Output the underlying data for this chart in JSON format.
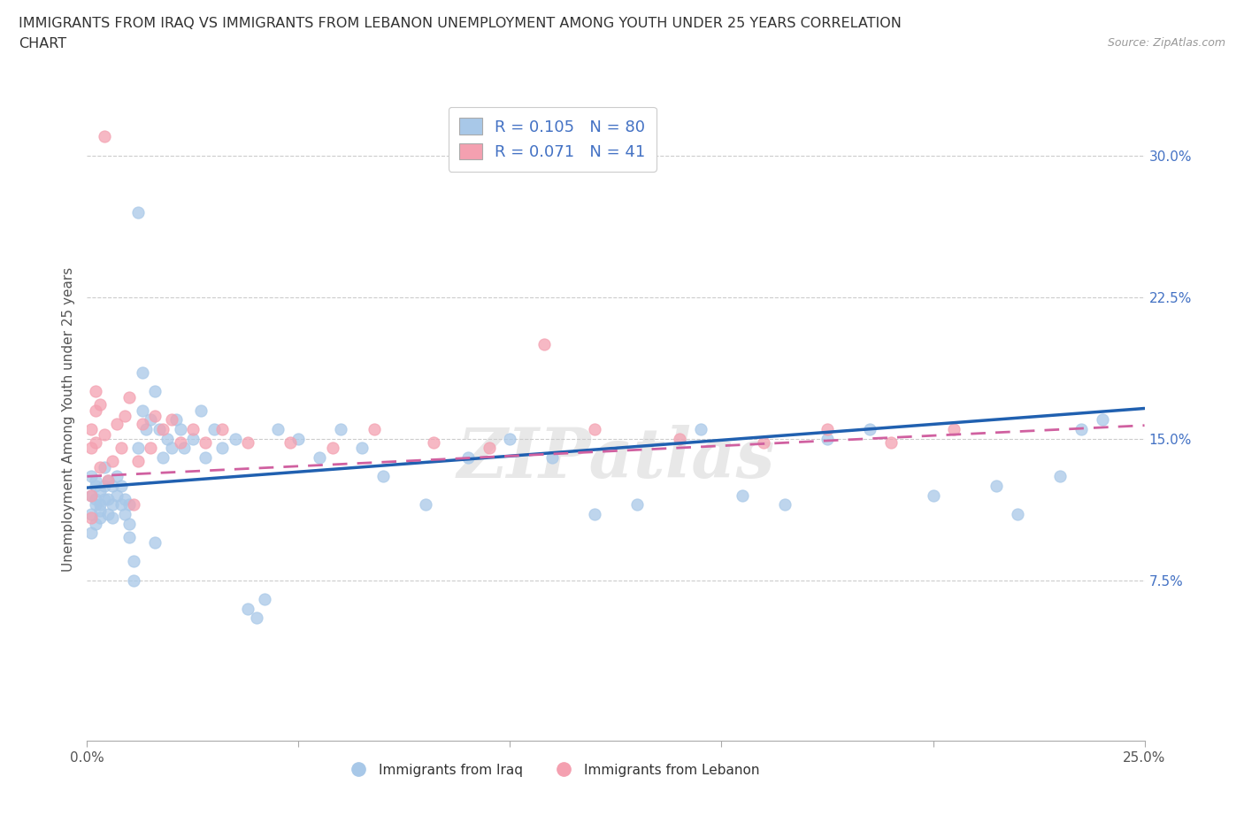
{
  "title_line1": "IMMIGRANTS FROM IRAQ VS IMMIGRANTS FROM LEBANON UNEMPLOYMENT AMONG YOUTH UNDER 25 YEARS CORRELATION",
  "title_line2": "CHART",
  "source": "Source: ZipAtlas.com",
  "ylabel": "Unemployment Among Youth under 25 years",
  "xlim": [
    0.0,
    0.25
  ],
  "ylim": [
    -0.01,
    0.33
  ],
  "ytick_positions": [
    0.075,
    0.15,
    0.225,
    0.3
  ],
  "yticklabels": [
    "7.5%",
    "15.0%",
    "22.5%",
    "30.0%"
  ],
  "R_iraq": 0.105,
  "N_iraq": 80,
  "R_lebanon": 0.071,
  "N_lebanon": 41,
  "color_iraq": "#a8c8e8",
  "color_lebanon": "#f4a0b0",
  "line_color_iraq": "#2060b0",
  "line_color_lebanon": "#d060a0",
  "watermark": "ZIPatlas",
  "iraq_x": [
    0.001,
    0.001,
    0.001,
    0.001,
    0.002,
    0.002,
    0.002,
    0.002,
    0.002,
    0.003,
    0.003,
    0.003,
    0.003,
    0.004,
    0.004,
    0.004,
    0.005,
    0.005,
    0.005,
    0.006,
    0.006,
    0.006,
    0.007,
    0.007,
    0.008,
    0.008,
    0.009,
    0.009,
    0.01,
    0.01,
    0.01,
    0.011,
    0.011,
    0.012,
    0.012,
    0.013,
    0.013,
    0.014,
    0.015,
    0.016,
    0.016,
    0.017,
    0.018,
    0.019,
    0.02,
    0.021,
    0.022,
    0.023,
    0.025,
    0.027,
    0.028,
    0.03,
    0.032,
    0.035,
    0.038,
    0.04,
    0.042,
    0.045,
    0.05,
    0.055,
    0.06,
    0.065,
    0.07,
    0.08,
    0.09,
    0.1,
    0.11,
    0.12,
    0.13,
    0.145,
    0.155,
    0.165,
    0.175,
    0.185,
    0.2,
    0.215,
    0.22,
    0.23,
    0.235,
    0.24
  ],
  "iraq_y": [
    0.13,
    0.12,
    0.11,
    0.1,
    0.125,
    0.115,
    0.128,
    0.105,
    0.118,
    0.115,
    0.108,
    0.122,
    0.112,
    0.118,
    0.125,
    0.135,
    0.128,
    0.11,
    0.118,
    0.115,
    0.108,
    0.125,
    0.12,
    0.13,
    0.115,
    0.125,
    0.118,
    0.11,
    0.115,
    0.105,
    0.098,
    0.085,
    0.075,
    0.27,
    0.145,
    0.185,
    0.165,
    0.155,
    0.16,
    0.175,
    0.095,
    0.155,
    0.14,
    0.15,
    0.145,
    0.16,
    0.155,
    0.145,
    0.15,
    0.165,
    0.14,
    0.155,
    0.145,
    0.15,
    0.06,
    0.055,
    0.065,
    0.155,
    0.15,
    0.14,
    0.155,
    0.145,
    0.13,
    0.115,
    0.14,
    0.15,
    0.14,
    0.11,
    0.115,
    0.155,
    0.12,
    0.115,
    0.15,
    0.155,
    0.12,
    0.125,
    0.11,
    0.13,
    0.155,
    0.16
  ],
  "lebanon_x": [
    0.001,
    0.001,
    0.001,
    0.001,
    0.002,
    0.002,
    0.002,
    0.003,
    0.003,
    0.004,
    0.004,
    0.005,
    0.006,
    0.007,
    0.008,
    0.009,
    0.01,
    0.011,
    0.012,
    0.013,
    0.015,
    0.016,
    0.018,
    0.02,
    0.022,
    0.025,
    0.028,
    0.032,
    0.038,
    0.048,
    0.058,
    0.068,
    0.082,
    0.095,
    0.108,
    0.12,
    0.14,
    0.16,
    0.175,
    0.19,
    0.205
  ],
  "lebanon_y": [
    0.12,
    0.155,
    0.145,
    0.108,
    0.175,
    0.165,
    0.148,
    0.168,
    0.135,
    0.152,
    0.31,
    0.128,
    0.138,
    0.158,
    0.145,
    0.162,
    0.172,
    0.115,
    0.138,
    0.158,
    0.145,
    0.162,
    0.155,
    0.16,
    0.148,
    0.155,
    0.148,
    0.155,
    0.148,
    0.148,
    0.145,
    0.155,
    0.148,
    0.145,
    0.2,
    0.155,
    0.15,
    0.148,
    0.155,
    0.148,
    0.155
  ]
}
